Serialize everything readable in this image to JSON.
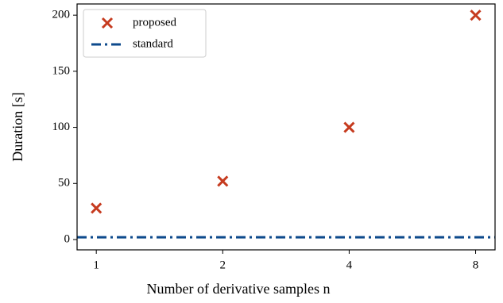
{
  "chart_data": {
    "type": "scatter",
    "xlabel": "Number of derivative samples n",
    "ylabel": "Duration [s]",
    "x": [
      1,
      2,
      4,
      8
    ],
    "xscale": "log",
    "series": [
      {
        "name": "proposed",
        "color": "#c63b1f",
        "marker": "x",
        "values": [
          28,
          52,
          100,
          200
        ]
      },
      {
        "name": "standard",
        "color": "#0d4a8c",
        "kind": "hline",
        "linestyle": "dashdot",
        "value": 2
      }
    ],
    "xlim": [
      0.9,
      8.9
    ],
    "xticks": [
      1,
      2,
      4,
      8
    ],
    "ylim": [
      -9.2,
      210
    ],
    "yticks": [
      0,
      50,
      100,
      150,
      200
    ],
    "legend": "upper left"
  }
}
